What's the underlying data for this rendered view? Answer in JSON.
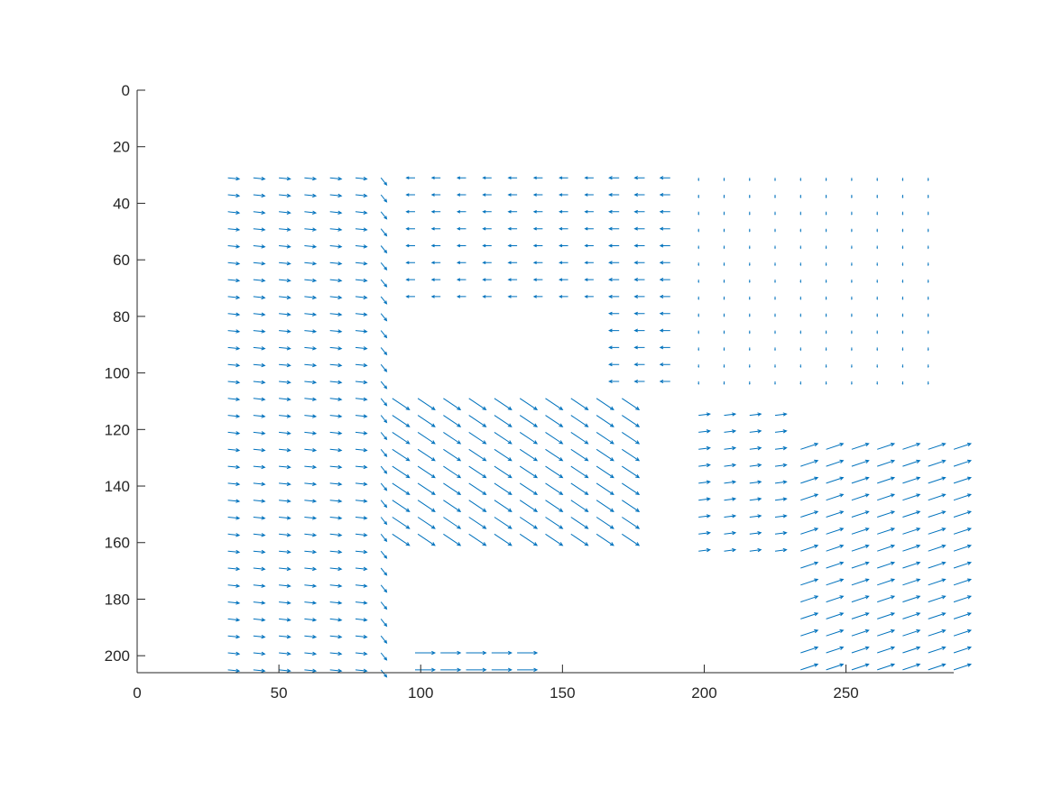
{
  "chart_data": {
    "type": "quiver",
    "title": "",
    "xlabel": "",
    "ylabel": "",
    "xlim": [
      0,
      288
    ],
    "ylim": [
      0,
      206
    ],
    "y_direction": "reversed",
    "x_axis_location": "bottom",
    "grid": false,
    "color": "#0072BD",
    "x_ticks": [
      0,
      50,
      100,
      150,
      200,
      250
    ],
    "y_ticks": [
      0,
      20,
      40,
      60,
      80,
      100,
      120,
      140,
      160,
      180,
      200
    ],
    "regions": [
      {
        "name": "left-columns",
        "xs": [
          32,
          41,
          50,
          59,
          68,
          77
        ],
        "y_from": 31,
        "y_to": 205,
        "y_step": 6,
        "u": 4.0,
        "v": 0.4
      },
      {
        "name": "left-edge-column",
        "xs": [
          86
        ],
        "y_from": 31,
        "y_to": 205,
        "y_step": 6,
        "u": 2.0,
        "v": 2.5
      },
      {
        "name": "top-middle-block",
        "xs": [
          98,
          107,
          116,
          125,
          134,
          143,
          152,
          161
        ],
        "y_from": 31,
        "y_to": 73,
        "y_step": 6,
        "u": -3.0,
        "v": 0.0
      },
      {
        "name": "top-middle-tail",
        "xs": [
          170,
          179,
          188
        ],
        "y_from": 31,
        "y_to": 103,
        "y_step": 6,
        "u": -3.5,
        "v": 0.0
      },
      {
        "name": "middle-swirl",
        "xs": [
          90,
          99,
          108,
          117,
          126,
          135,
          144,
          153,
          162,
          171
        ],
        "y_from": 109,
        "y_to": 157,
        "y_step": 6,
        "u": 6.0,
        "v": 4.0
      },
      {
        "name": "top-right-block",
        "xs": [
          198,
          207,
          216,
          225,
          234,
          243,
          252,
          261,
          270,
          279
        ],
        "y_from": 31,
        "y_to": 103,
        "y_step": 6,
        "u": 0.0,
        "v": 0.9
      },
      {
        "name": "right-lower-left",
        "xs": [
          198,
          207,
          216,
          225
        ],
        "y_from": 115,
        "y_to": 163,
        "y_step": 6,
        "u": 4.0,
        "v": -0.5
      },
      {
        "name": "right-lower-right",
        "xs": [
          234,
          243,
          252,
          261,
          270,
          279,
          288
        ],
        "y_from": 127,
        "y_to": 205,
        "y_step": 6,
        "u": 6.0,
        "v": -2.0
      },
      {
        "name": "bottom-strip",
        "xs": [
          98,
          107,
          116,
          125,
          134
        ],
        "y_from": 199,
        "y_to": 205,
        "y_step": 6,
        "u": 7.0,
        "v": 0.0
      }
    ]
  }
}
